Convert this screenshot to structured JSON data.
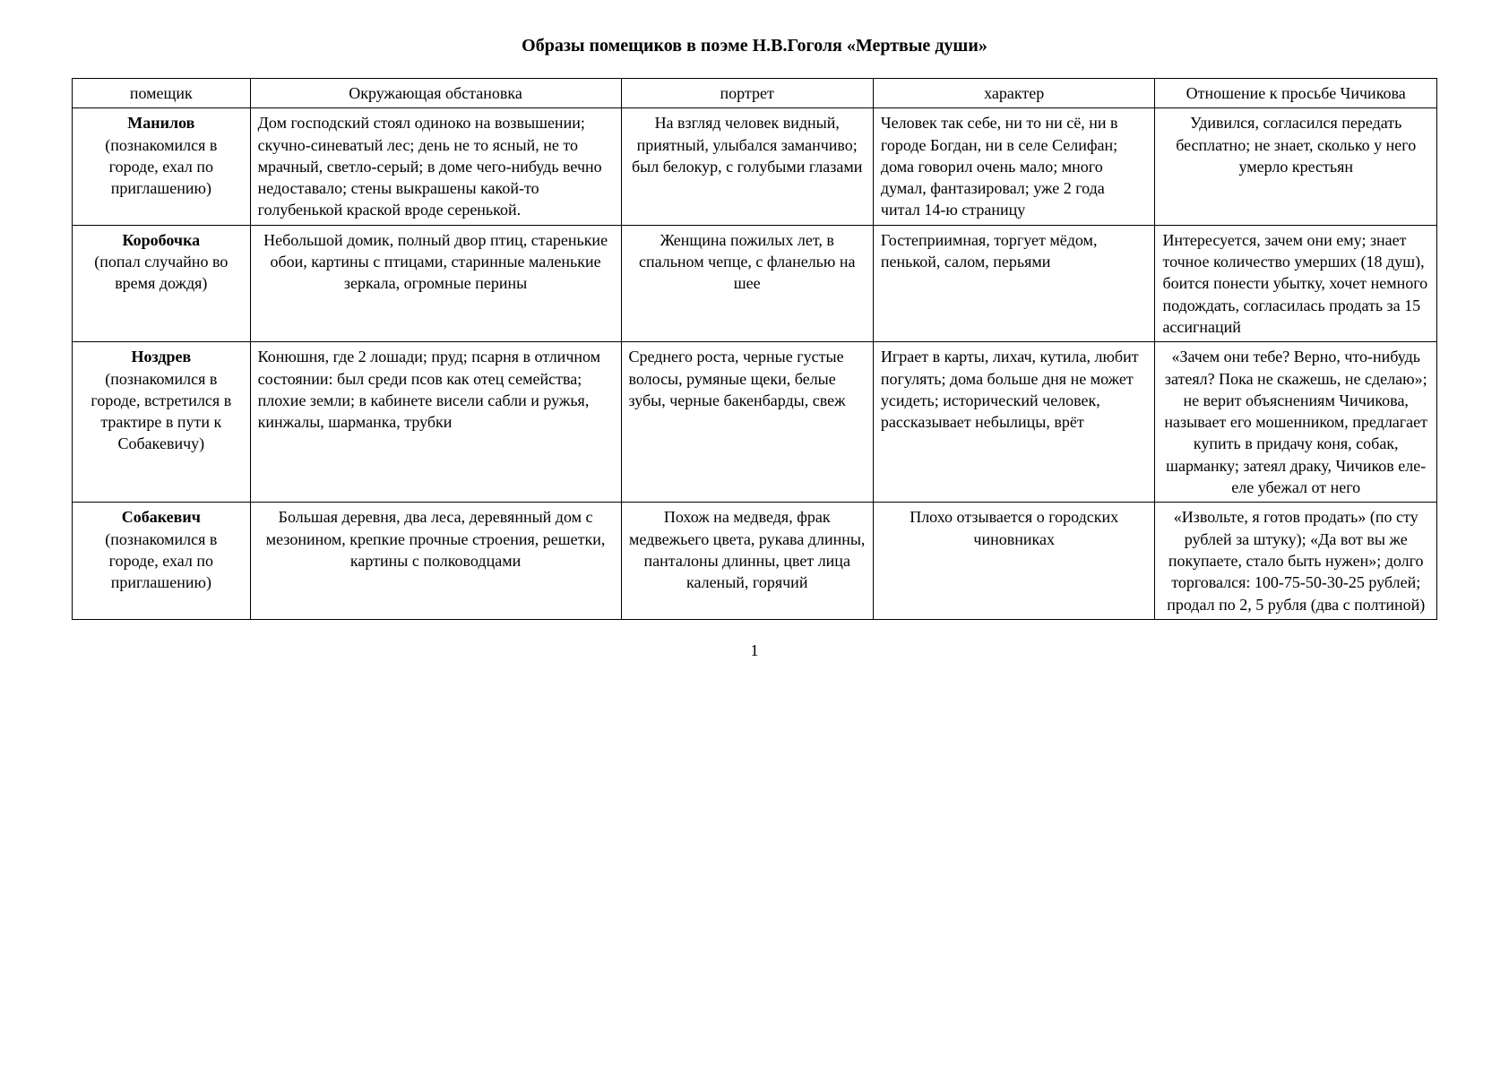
{
  "title": "Образы помещиков в поэме Н.В.Гоголя «Мертвые души»",
  "columns": [
    "помещик",
    "Окружающая обстановка",
    "портрет",
    "характер",
    "Отношение к просьбе Чичикова"
  ],
  "rows": [
    {
      "name": "Манилов",
      "context": "(познакомился в городе, ехал по приглашению)",
      "env": "Дом господский стоял одиноко на возвышении; скучно-синеватый лес; день не то ясный, не то мрачный, светло-серый; в доме чего-нибудь вечно недоставало; стены выкрашены какой-то голубенькой краской вроде серенькой.",
      "portrait": "На взгляд человек видный, приятный, улыбался заманчиво; был белокур, с голубыми глазами",
      "character": "Человек так себе, ни то ни сё, ни в городе Богдан, ни в селе Селифан; дома говорил очень мало; много думал, фантазировал; уже 2 года читал 14-ю страницу",
      "reaction": "Удивился, согласился передать бесплатно; не знает, сколько у него умерло крестьян"
    },
    {
      "name": "Коробочка",
      "context": "(попал случайно во время дождя)",
      "env": "Небольшой домик, полный двор птиц, старенькие обои, картины с птицами, старинные маленькие зеркала, огромные перины",
      "portrait": "Женщина пожилых лет, в спальном чепце, с фланелью на шее",
      "character": "Гостеприимная, торгует мёдом, пенькой, салом, перьями",
      "reaction": "Интересуется, зачем они ему; знает точное количество умерших (18 душ), боится понести убытку, хочет немного подождать, согласилась продать за 15 ассигнаций"
    },
    {
      "name": "Ноздрев",
      "context": "(познакомился в городе, встретился в трактире в пути к Собакевичу)",
      "env": "Конюшня, где 2 лошади; пруд; псарня в отличном состоянии: был среди псов как отец семейства; плохие земли; в кабинете висели сабли и ружья, кинжалы, шарманка, трубки",
      "portrait": "Среднего роста, черные густые волосы, румяные щеки, белые зубы, черные бакенбарды, свеж",
      "character": "Играет в карты, лихач, кутила, любит погулять; дома больше дня не может усидеть; исторический человек, рассказывает небылицы, врёт",
      "reaction": "«Зачем они тебе? Верно, что-нибудь затеял? Пока не скажешь, не сделаю»; не верит объяснениям Чичикова, называет его мошенником, предлагает купить в придачу коня, собак, шарманку; затеял драку, Чичиков еле-еле убежал от него"
    },
    {
      "name": "Собакевич",
      "context": "(познакомился в городе, ехал по приглашению)",
      "env": "Большая деревня, два леса, деревянный дом с мезонином, крепкие прочные строения, решетки, картины с полководцами",
      "portrait": "Похож на медведя, фрак медвежьего цвета, рукава длинны, панталоны длинны, цвет лица каленый, горячий",
      "character": "Плохо отзывается о городских чиновниках",
      "reaction": "«Извольте, я готов продать» (по сту рублей за штуку); «Да вот вы же покупаете, стало быть нужен»; долго торговался: 100-75-50-30-25 рублей; продал по 2, 5 рубля (два с полтиной)"
    }
  ],
  "col_widths_percent": [
    12,
    25,
    17,
    19,
    19
  ],
  "env_align": [
    "left",
    "center",
    "left",
    "center"
  ],
  "portrait_align": [
    "center",
    "center",
    "left",
    "center"
  ],
  "character_align": [
    "left",
    "left",
    "left",
    "center"
  ],
  "reaction_align": [
    "center",
    "left",
    "center",
    "center"
  ],
  "page_number": "1",
  "background_color": "#ffffff",
  "text_color": "#000000",
  "border_color": "#000000",
  "title_fontsize": 20,
  "cell_fontsize": 18
}
